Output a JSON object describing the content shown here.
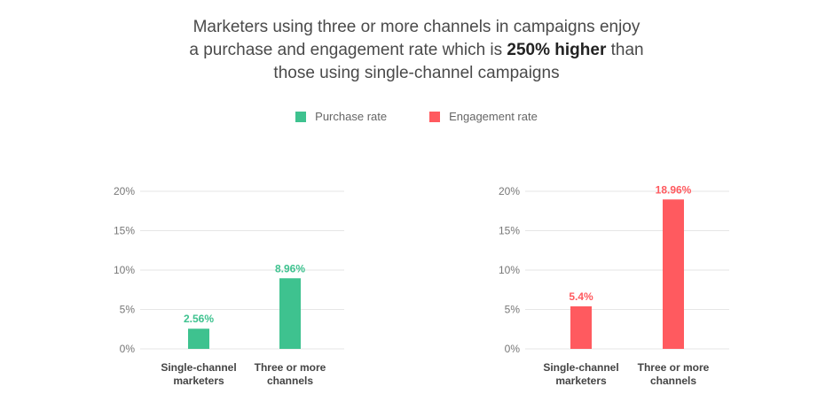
{
  "headline": {
    "line1": "Marketers using three or more channels in campaigns enjoy",
    "line2_pre": "a purchase and engagement rate which is ",
    "line2_bold": "250% higher",
    "line2_post": " than",
    "line3": "those using single-channel campaigns"
  },
  "legend": [
    {
      "label": "Purchase rate",
      "color": "#3ec28f"
    },
    {
      "label": "Engagement rate",
      "color": "#ff5a5f"
    }
  ],
  "chart_data": [
    {
      "type": "bar",
      "series": [
        {
          "name": "Purchase rate",
          "values": [
            2.56,
            8.96
          ],
          "labels": [
            "2.56%",
            "8.96%"
          ],
          "color": "#3ec28f"
        }
      ],
      "categories": [
        [
          "Single-channel",
          "marketers"
        ],
        [
          "Three or more",
          "channels"
        ]
      ],
      "ylim": [
        0,
        20
      ],
      "yticks": [
        0,
        5,
        10,
        15,
        20
      ],
      "ytick_labels": [
        "0%",
        "5%",
        "10%",
        "15%",
        "20%"
      ],
      "grid": true
    },
    {
      "type": "bar",
      "series": [
        {
          "name": "Engagement rate",
          "values": [
            5.4,
            18.96
          ],
          "labels": [
            "5.4%",
            "18.96%"
          ],
          "color": "#ff5a5f"
        }
      ],
      "categories": [
        [
          "Single-channel",
          "marketers"
        ],
        [
          "Three or more",
          "channels"
        ]
      ],
      "ylim": [
        0,
        20
      ],
      "yticks": [
        0,
        5,
        10,
        15,
        20
      ],
      "ytick_labels": [
        "0%",
        "5%",
        "10%",
        "15%",
        "20%"
      ],
      "grid": true
    }
  ]
}
